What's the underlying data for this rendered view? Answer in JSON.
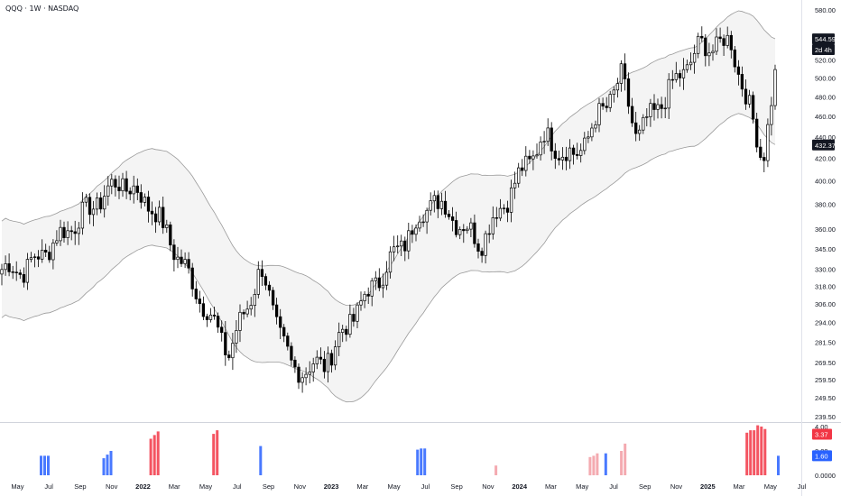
{
  "header": {
    "title": "QQQ · 1W · NASDAQ"
  },
  "price_axis": {
    "ticks": [
      "580.00",
      "520.00",
      "500.00",
      "480.00",
      "460.00",
      "440.00",
      "420.00",
      "400.00",
      "380.00",
      "360.00",
      "345.00",
      "330.00",
      "318.00",
      "306.00",
      "294.00",
      "281.50",
      "269.50",
      "259.50",
      "249.50",
      "239.50"
    ],
    "badges": [
      {
        "label": "544.59",
        "value": 544.59,
        "style": "dark"
      },
      {
        "label": "2d 4h",
        "value": 532,
        "style": "dark"
      },
      {
        "label": "432.37",
        "value": 432.37,
        "style": "dark"
      }
    ]
  },
  "indicator_axis": {
    "ticks": [
      "4.00",
      "2.00",
      "0.0000"
    ],
    "badges": [
      {
        "label": "3.37",
        "value": 3.37,
        "style": "red"
      },
      {
        "label": "1.60",
        "value": 1.6,
        "style": "blue"
      }
    ]
  },
  "time_axis": {
    "labels": [
      "May",
      "Jul",
      "Sep",
      "Nov",
      "2022",
      "Mar",
      "May",
      "Jul",
      "Sep",
      "Nov",
      "2023",
      "Mar",
      "May",
      "Jul",
      "Sep",
      "Nov",
      "2024",
      "Mar",
      "May",
      "Jul",
      "Sep",
      "Nov",
      "2025",
      "Mar",
      "May",
      "Jul"
    ]
  },
  "colors": {
    "up": "#ffffff",
    "down": "#000000",
    "band_fill": "#f4f4f4",
    "band_line": "#9a9a9a",
    "red": "#f23645",
    "blue": "#2962ff"
  },
  "chart_data": {
    "type": "candlestick",
    "symbol": "QQQ",
    "interval": "1W",
    "exchange": "NASDAQ",
    "y_scale": "log",
    "ylim": [
      239.5,
      580
    ],
    "price_anchors": [
      {
        "label": "May 2021",
        "close": 330
      },
      {
        "label": "Nov 2021",
        "close": 400
      },
      {
        "label": "Jan 2022",
        "close": 380
      },
      {
        "label": "Jun 2022",
        "close": 275
      },
      {
        "label": "Aug 2022",
        "close": 330
      },
      {
        "label": "Oct 2022",
        "close": 265
      },
      {
        "label": "Dec 2022",
        "close": 268
      },
      {
        "label": "Feb 2023",
        "close": 300
      },
      {
        "label": "Jul 2023",
        "close": 385
      },
      {
        "label": "Oct 2023",
        "close": 350
      },
      {
        "label": "Feb 2024",
        "close": 440
      },
      {
        "label": "Apr 2024",
        "close": 420
      },
      {
        "label": "Jul 2024",
        "close": 500
      },
      {
        "label": "Aug 2024",
        "close": 440
      },
      {
        "label": "Dec 2024",
        "close": 535
      },
      {
        "label": "Feb 2025",
        "close": 540
      },
      {
        "label": "Apr 2025",
        "close": 420
      },
      {
        "label": "May 2025",
        "close": 520
      }
    ],
    "bands": {
      "upper_last": 544.59,
      "lower_last": 432.37
    },
    "indicator": {
      "ylim": [
        0,
        4
      ],
      "bars": [
        {
          "label": "Jun 2021",
          "color": "blue",
          "values": [
            1.6,
            1.6,
            1.6
          ]
        },
        {
          "label": "Oct 2021",
          "color": "blue",
          "values": [
            1.4,
            1.7,
            2.0
          ]
        },
        {
          "label": "Jan 2022",
          "color": "red",
          "values": [
            3.0,
            3.3,
            3.6
          ]
        },
        {
          "label": "May 2022",
          "color": "red",
          "values": [
            3.4,
            3.7
          ]
        },
        {
          "label": "Aug 2022",
          "color": "blue",
          "values": [
            2.4
          ]
        },
        {
          "label": "Jun 2023",
          "color": "blue",
          "values": [
            2.1,
            2.2,
            2.2
          ]
        },
        {
          "label": "Nov 2023",
          "color": "red-light",
          "values": [
            0.8
          ]
        },
        {
          "label": "May 2024",
          "color": "red-light",
          "values": [
            1.5,
            1.6,
            1.8
          ]
        },
        {
          "label": "Jun 2024",
          "color": "blue",
          "values": [
            1.8
          ]
        },
        {
          "label": "Jul 2024",
          "color": "red-light",
          "values": [
            2.0,
            2.6
          ]
        },
        {
          "label": "Mar 2025",
          "color": "red",
          "values": [
            3.5,
            3.7,
            3.7,
            4.1,
            4.0,
            3.8
          ]
        },
        {
          "label": "May 2025",
          "color": "blue",
          "values": [
            1.6
          ]
        }
      ]
    }
  }
}
